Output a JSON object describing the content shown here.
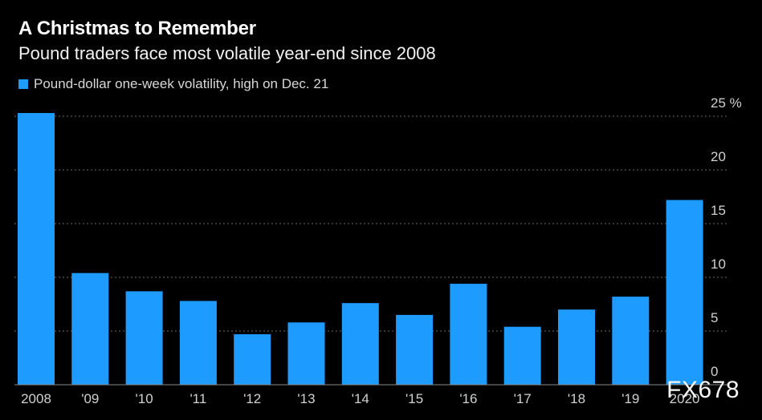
{
  "chart_data": {
    "type": "bar",
    "title": "A Christmas to Remember",
    "subtitle": "Pound traders face most volatile year-end since 2008",
    "legend": "Pound-dollar one-week volatility, high on Dec. 21",
    "categories": [
      "2008",
      "'09",
      "'10",
      "'11",
      "'12",
      "'13",
      "'14",
      "'15",
      "'16",
      "'17",
      "'18",
      "'19",
      "2020"
    ],
    "values": [
      25.3,
      10.4,
      8.7,
      7.8,
      4.7,
      5.8,
      7.6,
      6.5,
      9.4,
      5.4,
      7.0,
      8.2,
      17.2
    ],
    "y_ticks": [
      "25 %",
      "20",
      "15",
      "10",
      "5",
      "0"
    ],
    "ylim": [
      0,
      25
    ],
    "grid": true,
    "color": "#1e9bff",
    "watermark": "FX678"
  }
}
